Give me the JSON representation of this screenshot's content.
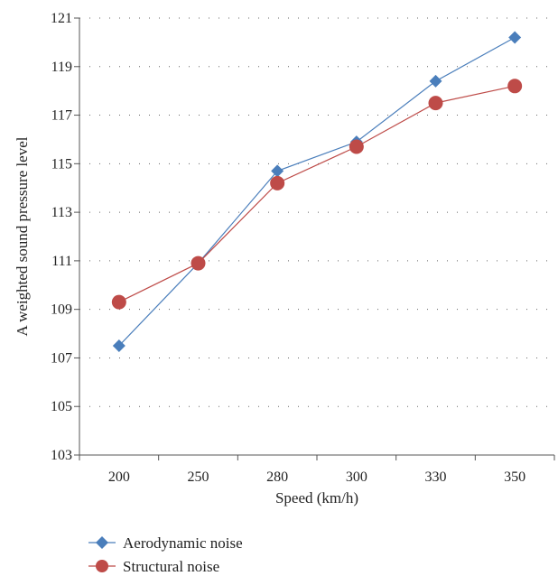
{
  "chart_data": {
    "type": "line",
    "title": "",
    "xlabel": "Speed (km/h)",
    "ylabel": "A weighted sound pressure level",
    "categories": [
      "200",
      "250",
      "280",
      "300",
      "330",
      "350"
    ],
    "ylim": [
      103,
      121
    ],
    "yticks": [
      "103",
      "105",
      "107",
      "109",
      "111",
      "113",
      "115",
      "117",
      "119",
      "121"
    ],
    "grid": true,
    "legend_position": "bottom-left",
    "series": [
      {
        "name": "Aerodynamic noise",
        "values": [
          107.5,
          110.9,
          114.7,
          115.9,
          118.4,
          120.2
        ],
        "color": "#4a7ebb",
        "marker": "diamond"
      },
      {
        "name": "Structural noise",
        "values": [
          109.3,
          110.9,
          114.2,
          115.7,
          117.5,
          118.2
        ],
        "color": "#be4b48",
        "marker": "circle"
      }
    ]
  }
}
